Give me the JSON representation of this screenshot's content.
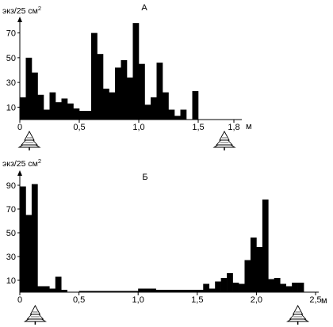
{
  "chart_data": [
    {
      "type": "bar",
      "panel_label": "А",
      "ylabel": "экз/25 см",
      "ylabel_sup": "2",
      "x_unit": "м",
      "x_start": 0,
      "bin_width": 0.05,
      "xlim": [
        0,
        1.8
      ],
      "ylim": [
        0,
        80
      ],
      "y_ticks": [
        10,
        30,
        50,
        70
      ],
      "x_ticks": [
        {
          "value": 0,
          "label": "0"
        },
        {
          "value": 0.5,
          "label": "0,5"
        },
        {
          "value": 1.0,
          "label": "1,0"
        },
        {
          "value": 1.5,
          "label": "1,5"
        },
        {
          "value": 1.8,
          "label": "1,8"
        }
      ],
      "values": [
        18,
        50,
        38,
        20,
        8,
        22,
        14,
        17,
        13,
        9,
        7,
        7,
        70,
        53,
        25,
        22,
        42,
        48,
        34,
        78,
        45,
        12,
        18,
        46,
        22,
        8,
        3,
        8,
        0,
        23
      ],
      "tree_icons": [
        0.08,
        1.72
      ],
      "grid": false
    },
    {
      "type": "bar",
      "panel_label": "Б",
      "ylabel": "экз/25 см",
      "ylabel_sup": "2",
      "x_unit": "м",
      "x_start": 0,
      "bin_width": 0.05,
      "xlim": [
        0,
        2.5
      ],
      "ylim": [
        0,
        90
      ],
      "y_ticks": [
        10,
        30,
        50,
        70,
        90
      ],
      "x_ticks": [
        {
          "value": 0,
          "label": "0"
        },
        {
          "value": 0.5,
          "label": "0,5"
        },
        {
          "value": 1.0,
          "label": "1,0"
        },
        {
          "value": 1.5,
          "label": "1,5"
        },
        {
          "value": 2.0,
          "label": "2,0"
        },
        {
          "value": 2.5,
          "label": "2,5"
        }
      ],
      "values": [
        89,
        65,
        91,
        5,
        5,
        3,
        13,
        2,
        0,
        0,
        1,
        1,
        1,
        1,
        1,
        1,
        1,
        1,
        1,
        1,
        3,
        3,
        3,
        2,
        2,
        2,
        2,
        2,
        2,
        2,
        2,
        7,
        3,
        9,
        12,
        16,
        8,
        7,
        27,
        46,
        38,
        78,
        11,
        12,
        7,
        5,
        8,
        8
      ],
      "tree_icons": [
        0.13,
        2.35
      ],
      "grid": false
    }
  ]
}
